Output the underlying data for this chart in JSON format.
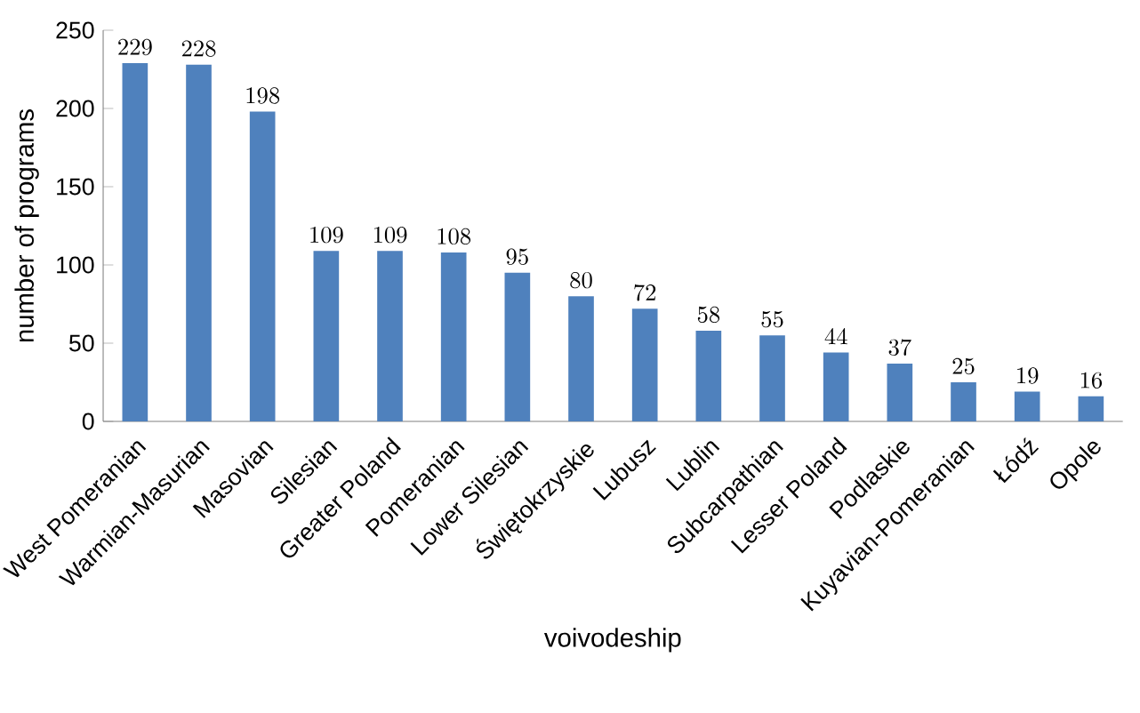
{
  "chart_data": {
    "type": "bar",
    "xlabel": "voivodeship",
    "ylabel": "number of programs",
    "categories": [
      "West Pomeranian",
      "Warmian-Masurian",
      "Masovian",
      "Silesian",
      "Greater Poland",
      "Pomeranian",
      "Lower Silesian",
      "Świętokrzyskie",
      "Lubusz",
      "Lublin",
      "Subcarpathian",
      "Lesser Poland",
      "Podlaskie",
      "Kuyavian-Pomeranian",
      "Łódź",
      "Opole"
    ],
    "values": [
      229,
      228,
      198,
      109,
      109,
      108,
      95,
      80,
      72,
      58,
      55,
      44,
      37,
      25,
      19,
      16
    ],
    "color": "#4f81bd",
    "ylim": [
      0,
      250
    ],
    "yticks": [
      0,
      50,
      100,
      150,
      200,
      250
    ],
    "data_labels": true
  }
}
